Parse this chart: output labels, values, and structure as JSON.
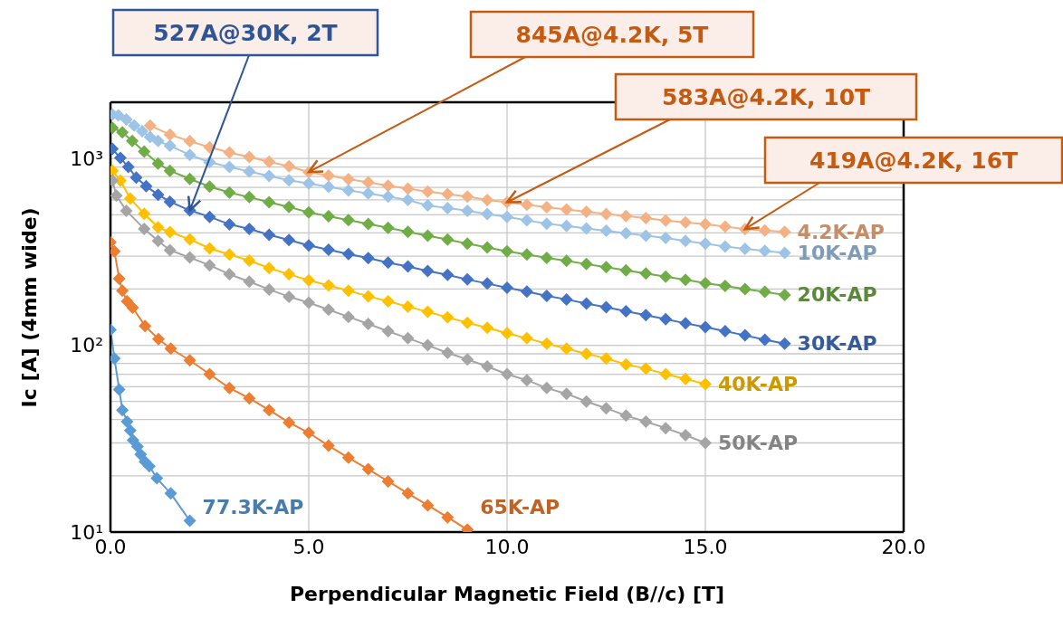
{
  "chart_data": {
    "type": "line",
    "xlabel": "Perpendicular Magnetic Field (B//c) [T]",
    "ylabel": "Ic [A] (4mm wide)",
    "xlim": [
      0,
      20
    ],
    "xticks": [
      {
        "value": 0,
        "label": "0.0"
      },
      {
        "value": 5,
        "label": "5.0"
      },
      {
        "value": 10,
        "label": "10.0"
      },
      {
        "value": 15,
        "label": "15.0"
      },
      {
        "value": 20,
        "label": "20.0"
      }
    ],
    "ylim": [
      10,
      2000
    ],
    "log": "y",
    "grid": true,
    "marker": "diamond",
    "yticks": [
      {
        "value": 10,
        "label": "10¹"
      },
      {
        "value": 20,
        "label": null
      },
      {
        "value": 30,
        "label": null
      },
      {
        "value": 40,
        "label": null
      },
      {
        "value": 50,
        "label": null
      },
      {
        "value": 60,
        "label": null
      },
      {
        "value": 70,
        "label": null
      },
      {
        "value": 80,
        "label": null
      },
      {
        "value": 90,
        "label": null
      },
      {
        "value": 100,
        "label": "10²"
      },
      {
        "value": 200,
        "label": null
      },
      {
        "value": 300,
        "label": null
      },
      {
        "value": 400,
        "label": null
      },
      {
        "value": 500,
        "label": null
      },
      {
        "value": 600,
        "label": null
      },
      {
        "value": 700,
        "label": null
      },
      {
        "value": 800,
        "label": null
      },
      {
        "value": 900,
        "label": null
      },
      {
        "value": 1000,
        "label": "10³"
      },
      {
        "value": 2000,
        "label": null
      }
    ],
    "series": [
      {
        "name": "4.2K-AP",
        "color": "#f4b183",
        "x": [
          1.0,
          1.5,
          2.0,
          2.5,
          3.0,
          3.5,
          4.0,
          4.5,
          5.0,
          5.5,
          6.0,
          6.5,
          7.0,
          7.5,
          8.0,
          8.5,
          9.0,
          9.5,
          10.0,
          10.5,
          11.0,
          11.5,
          12.0,
          12.5,
          13.0,
          13.5,
          14.0,
          14.5,
          15.0,
          15.5,
          16.0,
          16.5,
          17.0
        ],
        "values": [
          1500,
          1343,
          1237,
          1148,
          1077,
          1018,
          961,
          908,
          845,
          810,
          775,
          745,
          715,
          690,
          665,
          645,
          625,
          600,
          583,
          565,
          548,
          533,
          518,
          505,
          492,
          480,
          465,
          455,
          445,
          432,
          419,
          412,
          405
        ]
      },
      {
        "name": "10K-AP",
        "color": "#9dc3e6",
        "x": [
          0.05,
          0.2,
          0.4,
          0.6,
          0.8,
          1.0,
          1.2,
          1.5,
          2.0,
          2.5,
          3.0,
          3.5,
          4.0,
          4.5,
          5.0,
          5.5,
          6.0,
          6.5,
          7.0,
          7.5,
          8.0,
          8.5,
          9.0,
          9.5,
          10.0,
          10.5,
          11.0,
          11.5,
          12.0,
          12.5,
          13.0,
          13.5,
          14.0,
          14.5,
          15.0,
          15.5,
          16.0,
          16.5,
          17.0
        ],
        "values": [
          1720,
          1700,
          1620,
          1500,
          1400,
          1300,
          1240,
          1170,
          1045,
          955,
          900,
          852,
          805,
          765,
          735,
          705,
          675,
          650,
          625,
          600,
          560,
          542,
          525,
          505,
          487,
          467,
          448,
          435,
          422,
          410,
          398,
          386,
          375,
          362,
          350,
          338,
          328,
          320,
          312
        ]
      },
      {
        "name": "20K-AP",
        "color": "#70ad47",
        "x": [
          0.05,
          0.3,
          0.55,
          0.85,
          1.2,
          1.5,
          2.0,
          2.5,
          3.0,
          3.5,
          4.0,
          4.5,
          5.0,
          5.5,
          6.0,
          6.5,
          7.0,
          7.5,
          8.0,
          8.5,
          9.0,
          9.5,
          10.0,
          10.5,
          11.0,
          11.5,
          12.0,
          12.5,
          13.0,
          13.5,
          14.0,
          14.5,
          15.0,
          15.5,
          16.0,
          16.5,
          17.0
        ],
        "values": [
          1460,
          1380,
          1240,
          1090,
          940,
          860,
          777,
          707,
          657,
          621,
          583,
          550,
          515,
          491,
          468,
          446,
          425,
          405,
          386,
          368,
          350,
          334,
          318,
          306,
          294,
          283,
          272,
          262,
          252,
          242,
          233,
          224,
          215,
          208,
          200,
          193,
          186
        ]
      },
      {
        "name": "30K-AP",
        "color": "#4472c4",
        "x": [
          0.05,
          0.25,
          0.45,
          0.65,
          0.9,
          1.2,
          1.5,
          2.0,
          2.5,
          3.0,
          3.5,
          4.0,
          4.5,
          5.0,
          5.5,
          6.0,
          6.5,
          7.0,
          7.5,
          8.0,
          8.5,
          9.0,
          9.5,
          10.0,
          10.5,
          11.0,
          11.5,
          12.0,
          12.5,
          13.0,
          13.5,
          14.0,
          14.5,
          15.0,
          15.5,
          16.0,
          16.5,
          17.0
        ],
        "values": [
          1125,
          1006,
          900,
          790,
          710,
          640,
          587,
          527,
          487,
          444,
          420,
          390,
          366,
          342,
          325,
          308,
          293,
          277,
          264,
          250,
          238,
          225,
          214,
          203,
          194,
          184,
          176,
          167,
          160,
          152,
          145,
          138,
          131,
          125,
          119,
          113,
          107,
          102
        ]
      },
      {
        "name": "40K-AP",
        "color": "#ffc000",
        "x": [
          0.05,
          0.25,
          0.5,
          0.85,
          1.2,
          1.5,
          2.0,
          2.5,
          3.0,
          3.5,
          4.0,
          4.5,
          5.0,
          5.5,
          6.0,
          6.5,
          7.0,
          7.5,
          8.0,
          8.5,
          9.0,
          9.5,
          10.0,
          10.5,
          11.0,
          11.5,
          12.0,
          12.5,
          13.0,
          13.5,
          14.0,
          14.5,
          15.0
        ],
        "values": [
          860,
          762,
          609,
          506,
          428,
          404,
          369,
          330,
          306,
          284,
          259,
          240,
          223,
          209,
          196,
          183,
          172,
          161,
          151,
          141,
          132,
          124,
          116,
          109,
          102,
          96,
          90,
          85,
          79,
          75,
          70,
          66,
          62
        ]
      },
      {
        "name": "50K-AP",
        "color": "#a5a5a5",
        "x": [
          0.05,
          0.15,
          0.4,
          0.85,
          1.2,
          1.5,
          2.0,
          2.5,
          3.0,
          3.5,
          4.0,
          4.5,
          5.0,
          5.5,
          6.0,
          6.5,
          7.0,
          7.5,
          8.0,
          8.5,
          9.0,
          9.5,
          10.0,
          10.5,
          11.0,
          11.5,
          12.0,
          12.5,
          13.0,
          13.5,
          14.0,
          14.5,
          15.0
        ],
        "values": [
          762,
          632,
          525,
          420,
          362,
          323,
          295,
          268,
          240,
          219,
          199,
          182,
          169,
          155,
          142,
          130,
          119,
          109,
          100,
          91,
          84,
          77,
          70,
          65,
          59,
          55,
          50,
          46,
          42,
          39,
          36,
          33,
          30
        ]
      },
      {
        "name": "65K-AP",
        "color": "#ed7d31",
        "x": [
          0.0,
          0.1,
          0.22,
          0.3,
          0.42,
          0.56,
          0.87,
          1.21,
          1.52,
          2.0,
          2.5,
          3.0,
          3.5,
          4.0,
          4.5,
          5.0,
          5.5,
          6.0,
          6.5,
          7.0,
          7.5,
          8.0,
          8.5,
          9.0
        ],
        "values": [
          356,
          318,
          227,
          196,
          172,
          159,
          127,
          108,
          96,
          83,
          70,
          59,
          52,
          45,
          38.6,
          34,
          29,
          25,
          21.7,
          18.7,
          16.1,
          13.9,
          12.0,
          10.3
        ]
      },
      {
        "name": "77.3K-AP",
        "color": "#5b9bd5",
        "x": [
          0.0,
          0.1,
          0.22,
          0.3,
          0.42,
          0.5,
          0.57,
          0.68,
          0.76,
          0.87,
          0.98,
          1.17,
          1.52,
          2.0
        ],
        "values": [
          121,
          85,
          58,
          45,
          39,
          35,
          31,
          28.7,
          26,
          23.8,
          22.5,
          19.4,
          16.1,
          11.5
        ]
      }
    ],
    "annotations": [
      {
        "text": "527A@30K, 2T",
        "x": 2,
        "y": 527
      },
      {
        "text": "845A@4.2K, 5T",
        "x": 5,
        "y": 845
      },
      {
        "text": "583A@4.2K, 10T",
        "x": 10,
        "y": 583
      },
      {
        "text": "419A@4.2K, 16T",
        "x": 16,
        "y": 419
      }
    ]
  }
}
